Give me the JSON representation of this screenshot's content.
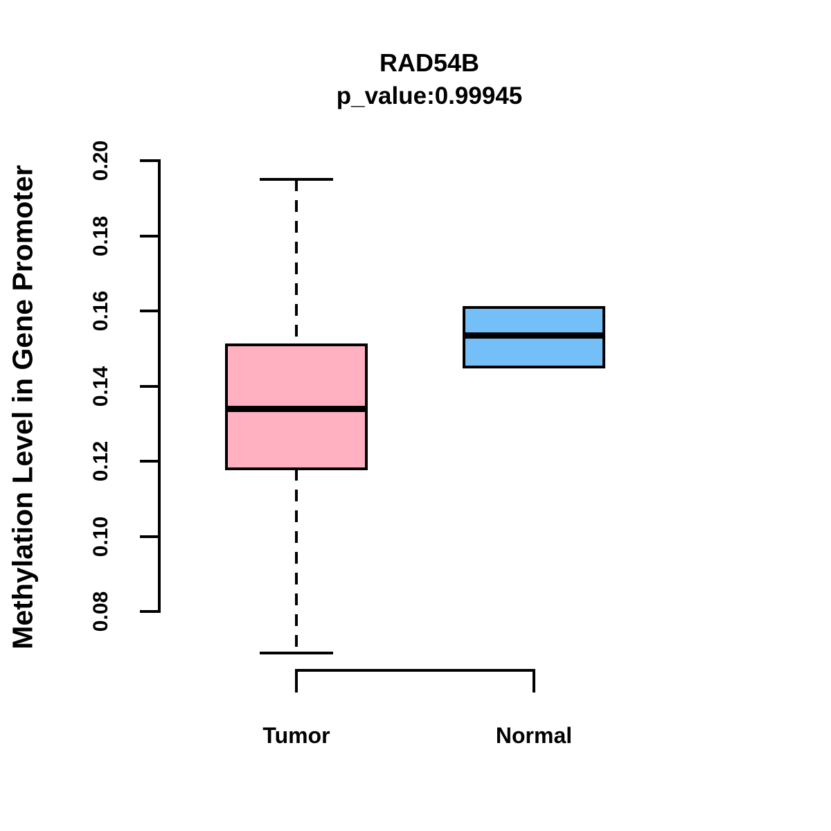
{
  "colors": {
    "background": "#FFFFFF",
    "line": "#000000",
    "tumor_fill": "#FFB1C1",
    "normal_fill": "#74BFF7"
  },
  "chart_data": {
    "type": "boxplot",
    "title": "RAD54B",
    "subtitle": "p_value:0.99945",
    "ylabel": "Methylation Level in Gene Promoter",
    "xlabel": "",
    "ylim": [
      0.08,
      0.2
    ],
    "yticks": [
      0.08,
      0.1,
      0.12,
      0.14,
      0.16,
      0.18,
      0.2
    ],
    "grid": false,
    "whisker_style": "dashed",
    "categories": [
      "Tumor",
      "Normal"
    ],
    "series": [
      {
        "name": "Tumor",
        "fill": "#FFB1C1",
        "whisker_low": 0.069,
        "q1": 0.118,
        "median": 0.134,
        "q3": 0.151,
        "whisker_high": 0.195
      },
      {
        "name": "Normal",
        "fill": "#74BFF7",
        "whisker_low": 0.145,
        "q1": 0.145,
        "median": 0.1535,
        "q3": 0.161,
        "whisker_high": 0.161
      }
    ]
  }
}
